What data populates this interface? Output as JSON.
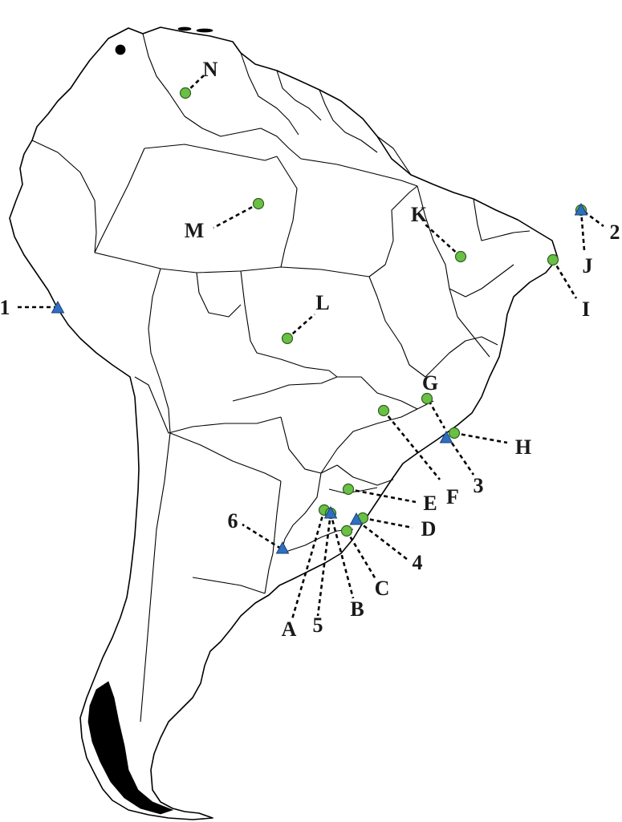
{
  "map": {
    "region": "South America",
    "colors": {
      "site_circle": "#6abf45",
      "site_triangle": "#2f6fc2",
      "outline": "#000000",
      "label": "#1a1a1a"
    },
    "circle_sites": [
      {
        "label": "A"
      },
      {
        "label": "B"
      },
      {
        "label": "C"
      },
      {
        "label": "D"
      },
      {
        "label": "E"
      },
      {
        "label": "F"
      },
      {
        "label": "G"
      },
      {
        "label": "H"
      },
      {
        "label": "I"
      },
      {
        "label": "J"
      },
      {
        "label": "K"
      },
      {
        "label": "L"
      },
      {
        "label": "M"
      },
      {
        "label": "N"
      }
    ],
    "triangle_sites": [
      {
        "label": "1"
      },
      {
        "label": "2"
      },
      {
        "label": "3"
      },
      {
        "label": "4"
      },
      {
        "label": "5"
      },
      {
        "label": "6"
      }
    ]
  }
}
